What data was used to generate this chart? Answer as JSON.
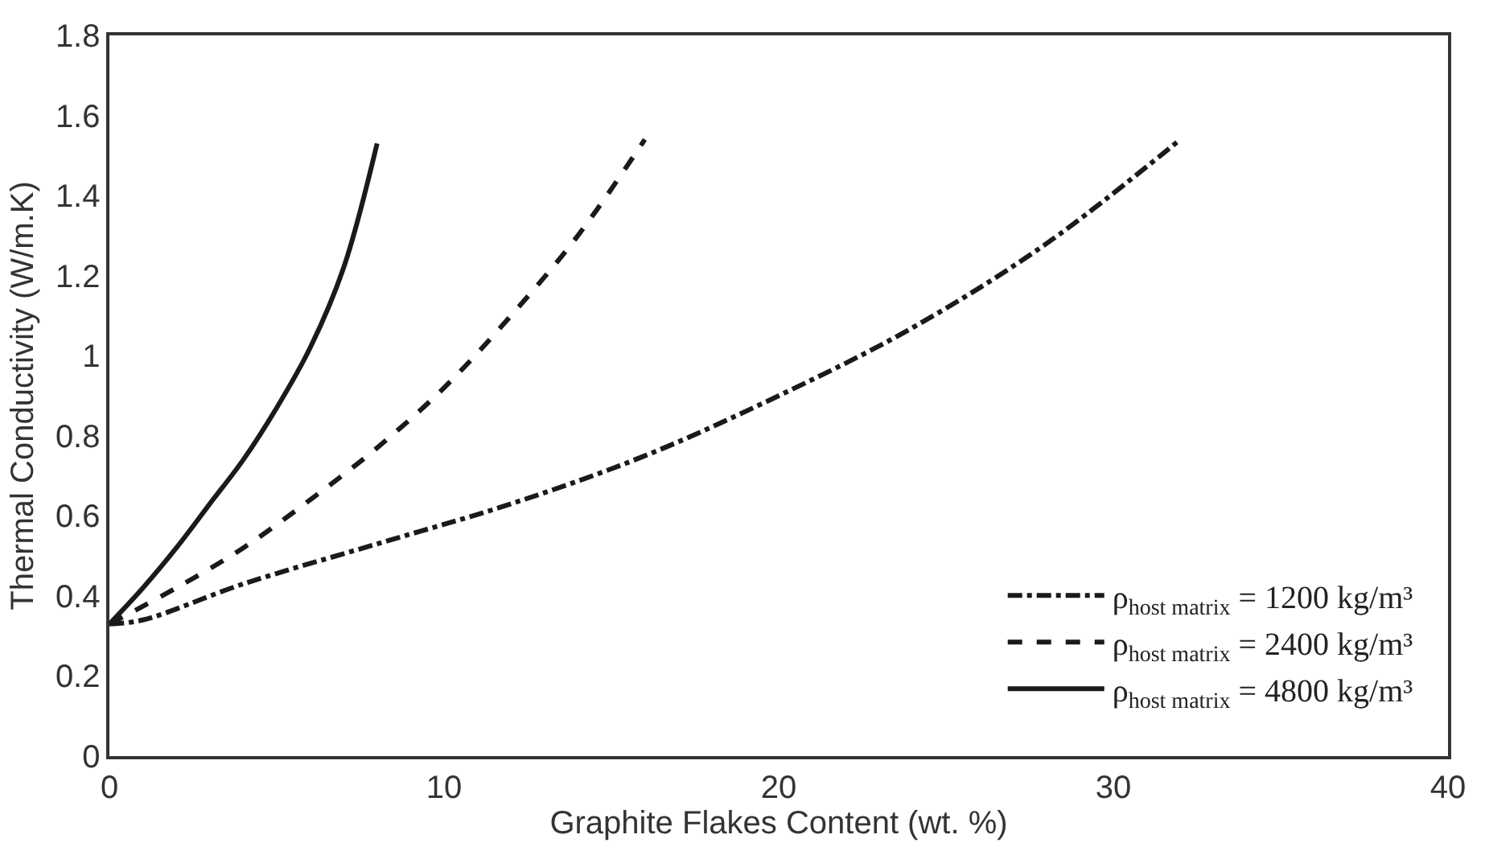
{
  "chart_data": {
    "type": "line",
    "xlabel": "Graphite Flakes Content (wt. %)",
    "ylabel": "Thermal Conductivity (W/m.K)",
    "xlim": [
      0,
      40
    ],
    "xticks": [
      0,
      10,
      20,
      30,
      40
    ],
    "ylim": [
      0,
      1.8
    ],
    "yticks": [
      0,
      0.2,
      0.4,
      0.6,
      0.8,
      1,
      1.2,
      1.4,
      1.6,
      1.8
    ],
    "legend": "bottom right",
    "marker": "none",
    "series": [
      {
        "name": "ρ$_{host matrix}$ = 1200 kg/m³",
        "color": "#1a1a1a",
        "line_style": "dashdot",
        "x": [
          0,
          1,
          4,
          8,
          12,
          16,
          20,
          24,
          28,
          32
        ],
        "values": [
          0.33,
          0.34,
          0.43,
          0.53,
          0.63,
          0.75,
          0.9,
          1.07,
          1.28,
          1.54
        ]
      },
      {
        "name": "ρ$_{host matrix}$ = 2400 kg/m³",
        "color": "#1a1a1a",
        "line_style": "dashed",
        "x": [
          0,
          2,
          4,
          6,
          8,
          10,
          12,
          14,
          16
        ],
        "values": [
          0.33,
          0.42,
          0.52,
          0.64,
          0.77,
          0.92,
          1.1,
          1.3,
          1.54
        ]
      },
      {
        "name": "ρ$_{host matrix}$ = 4800 kg/m³",
        "color": "#1a1a1a",
        "line_style": "solid",
        "x": [
          0,
          1,
          2,
          3,
          4,
          5,
          6,
          7,
          8
        ],
        "values": [
          0.33,
          0.42,
          0.52,
          0.63,
          0.74,
          0.87,
          1.02,
          1.22,
          1.53
        ]
      }
    ]
  }
}
